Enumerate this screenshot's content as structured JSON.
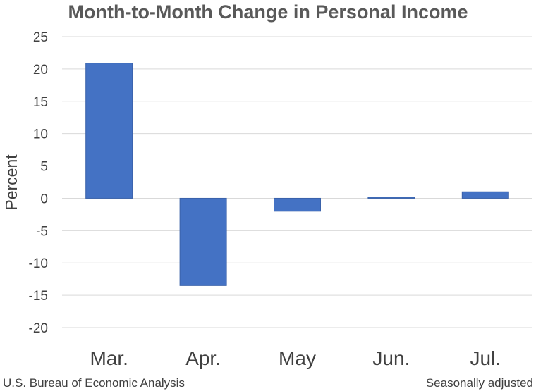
{
  "chart_data": {
    "type": "bar",
    "title": "Month-to-Month Change in Personal Income",
    "ylabel": "Percent",
    "xlabel": "",
    "categories": [
      "Mar.",
      "Apr.",
      "May",
      "Jun.",
      "Jul."
    ],
    "values": [
      20.9,
      -13.5,
      -2.0,
      0.1,
      1.0
    ],
    "ylim": [
      -20,
      25
    ],
    "yticks": [
      25,
      20,
      15,
      10,
      5,
      0,
      -5,
      -10,
      -15,
      -20
    ],
    "grid": true,
    "bar_color": "#4472C4"
  },
  "footer": {
    "source": "U.S. Bureau of Economic Analysis",
    "note": "Seasonally adjusted"
  }
}
